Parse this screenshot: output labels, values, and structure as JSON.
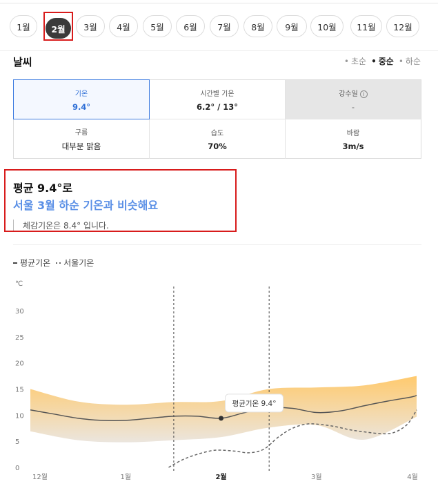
{
  "months": [
    "1월",
    "2월",
    "3월",
    "4월",
    "5월",
    "6월",
    "7월",
    "8월",
    "9월",
    "10월",
    "11월",
    "12월"
  ],
  "selected_month": "2월",
  "weather": {
    "title": "날씨",
    "ten_days": [
      "초순",
      "중순",
      "하순"
    ],
    "selected_ten_day": "중순",
    "cells": [
      {
        "label": "기온",
        "value": "9.4°"
      },
      {
        "label": "시간별 기온",
        "value": "6.2° / 13°"
      },
      {
        "label": "강수일",
        "value": "-",
        "info": "i"
      },
      {
        "label": "구름",
        "value": "대부분 맑음"
      },
      {
        "label": "습도",
        "value": "70%"
      },
      {
        "label": "바람",
        "value": "3m/s"
      }
    ]
  },
  "summary": {
    "avg": "평균 9.4°로",
    "compare": "서울 3월 하순 기온과 비슷해요",
    "feels": "체감기온은 8.4° 입니다."
  },
  "legend": {
    "avg": "평균기온",
    "seoul": "서울기온"
  },
  "tooltip": "평균기온 9.4°",
  "colors": {
    "accent": "#3d7be0",
    "highlight": "#d81b1b",
    "band_top": "#ffc766",
    "band_bottom": "#eae4dc"
  },
  "chart_data": {
    "type": "line",
    "ylabel": "℃",
    "yticks": [
      0,
      5,
      10,
      15,
      20,
      25,
      30
    ],
    "ylim": [
      0,
      30
    ],
    "x_tick_labels": [
      "12월",
      "1월",
      "2월",
      "3월",
      "4월"
    ],
    "x_tick_positions": [
      0,
      1,
      2,
      3,
      4
    ],
    "highlight_label": "2월",
    "highlight_range": [
      1.5,
      2.5
    ],
    "series": [
      {
        "name": "평균기온",
        "style": "solid",
        "x": [
          0,
          0.25,
          0.5,
          0.75,
          1.0,
          1.25,
          1.5,
          1.75,
          2.0,
          2.25,
          2.5,
          2.75,
          3.0,
          3.25,
          3.5,
          3.75,
          4.0,
          4.05
        ],
        "values": [
          11,
          10.2,
          9.4,
          9,
          9,
          9.4,
          9.8,
          9.8,
          9.4,
          10.5,
          11.4,
          11.3,
          10.5,
          10.8,
          11.8,
          12.7,
          13.5,
          13.8
        ]
      },
      {
        "name": "서울기온",
        "style": "dashed",
        "x": [
          1.45,
          1.6,
          1.75,
          1.9,
          2.0,
          2.15,
          2.3,
          2.45,
          2.6,
          2.75,
          2.9,
          3.05,
          3.2,
          3.35,
          3.5,
          3.65,
          3.8,
          3.95,
          4.05
        ],
        "values": [
          0,
          1.5,
          2.5,
          3.2,
          3.3,
          3.1,
          2.8,
          3.5,
          5.8,
          7.5,
          8.3,
          8.2,
          7.8,
          7.2,
          6.8,
          6.5,
          6.6,
          8.2,
          11
        ]
      },
      {
        "name": "band_upper",
        "style": "band",
        "x": [
          0,
          0.5,
          1.0,
          1.5,
          2.0,
          2.5,
          3.0,
          3.5,
          4.05
        ],
        "values": [
          15,
          12.6,
          12,
          12.5,
          12.7,
          15,
          15.3,
          15.7,
          17.5
        ]
      },
      {
        "name": "band_lower",
        "style": "band",
        "x": [
          0,
          0.5,
          1.0,
          1.5,
          2.0,
          2.5,
          3.0,
          3.5,
          4.05
        ],
        "values": [
          6.9,
          5.2,
          4.8,
          5.2,
          5.8,
          7.6,
          8.1,
          5.3,
          9.7
        ]
      }
    ],
    "marker": {
      "x": 2.0,
      "value": 9.4
    }
  }
}
